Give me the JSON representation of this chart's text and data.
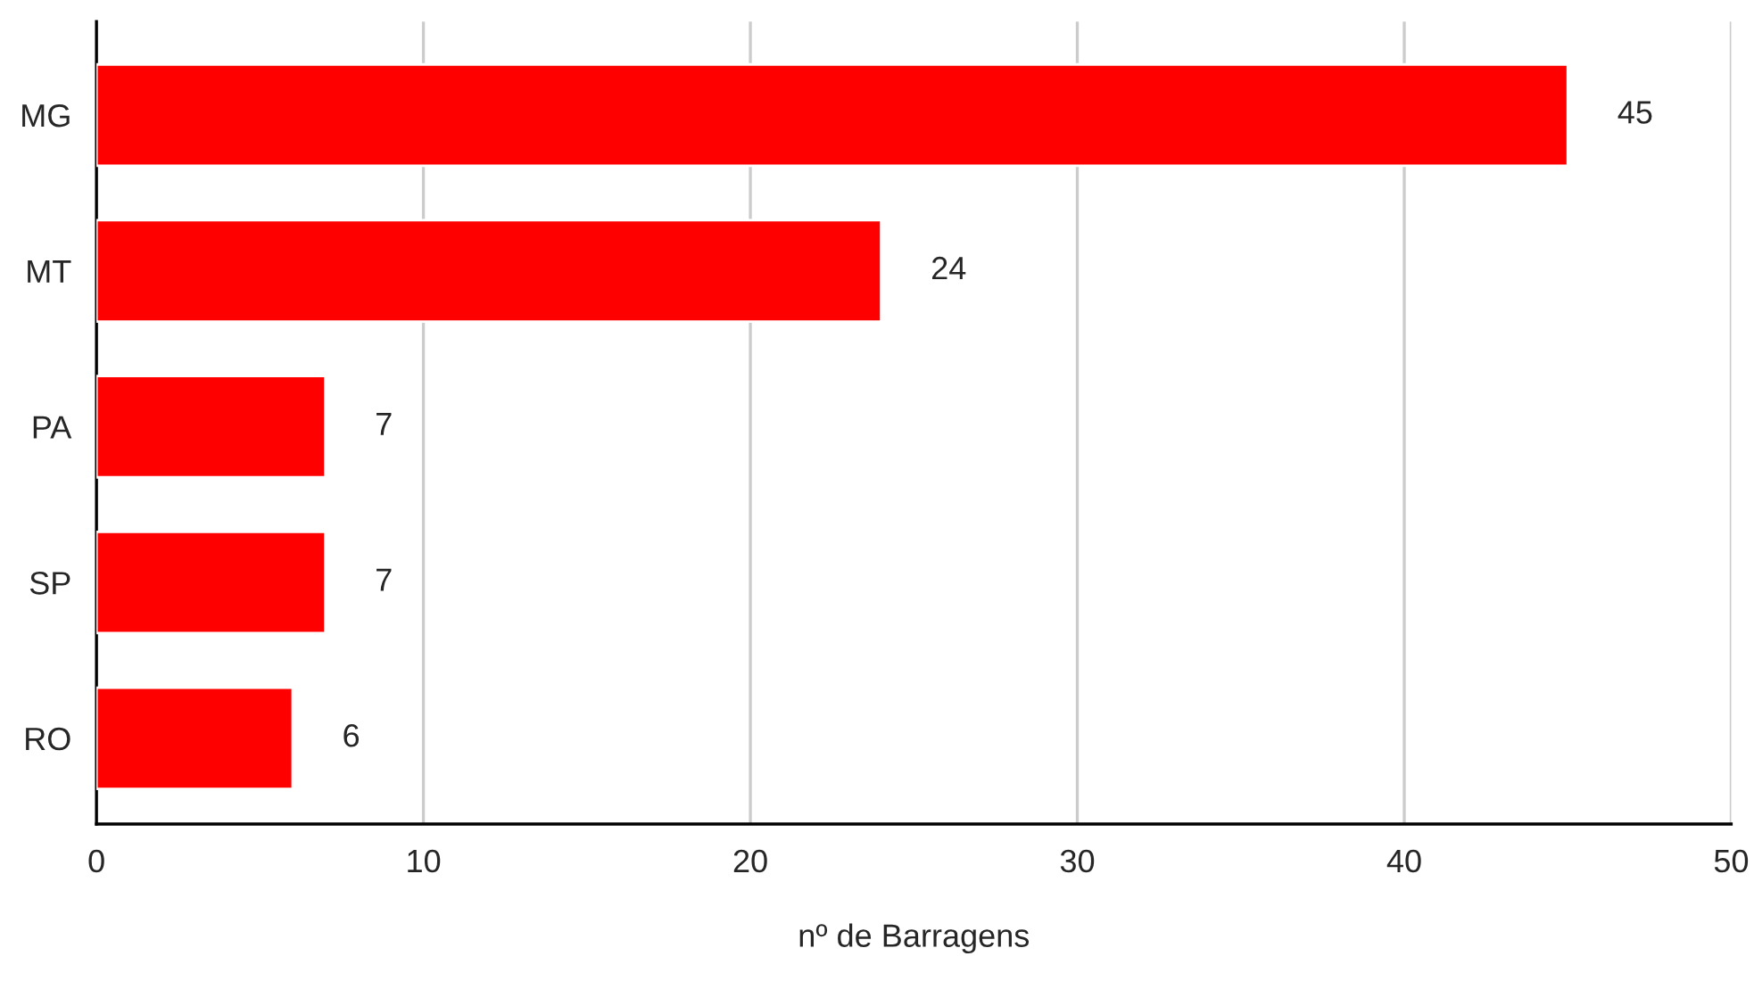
{
  "chart_data": {
    "type": "bar",
    "orientation": "horizontal",
    "xlabel": "nº de Barragens",
    "categories": [
      "MG",
      "MT",
      "PA",
      "SP",
      "RO"
    ],
    "values": [
      45,
      24,
      7,
      7,
      6
    ],
    "color": "#ff0000",
    "xlim": [
      0,
      50
    ],
    "xticks": [
      0,
      10,
      20,
      30,
      40,
      50
    ],
    "grid": "x",
    "data_labels": true
  }
}
